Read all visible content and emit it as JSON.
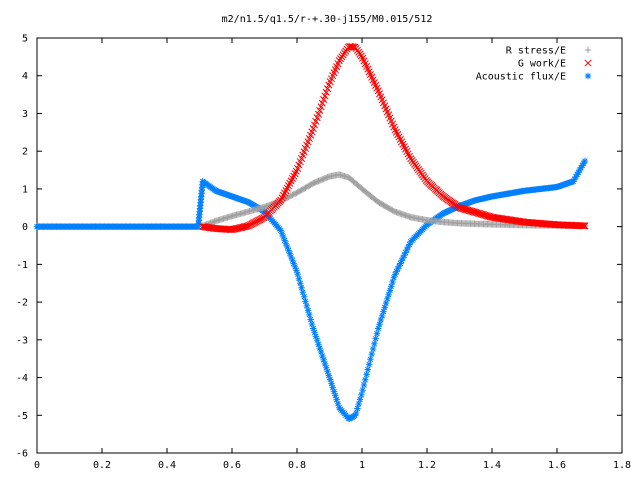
{
  "chart_data": {
    "type": "scatter",
    "title": "m2/n1.5/q1.5/r-+.30-j155/M0.015/512",
    "xlabel": "",
    "ylabel": "",
    "xlim": [
      0,
      1.8
    ],
    "ylim": [
      -6,
      5
    ],
    "xticks": [
      "0",
      "0.2",
      "0.4",
      "0.6",
      "0.8",
      "1",
      "1.2",
      "1.4",
      "1.6",
      "1.8"
    ],
    "yticks": [
      "5",
      "4",
      "3",
      "2",
      "1",
      "0",
      "-1",
      "-2",
      "-3",
      "-4",
      "-5",
      "-6"
    ],
    "legend_position": "top-right",
    "series": [
      {
        "name": "R stress/E",
        "marker": "+",
        "color": "#a0a0a0",
        "x": [
          0.51,
          0.55,
          0.6,
          0.65,
          0.7,
          0.75,
          0.8,
          0.85,
          0.9,
          0.93,
          0.96,
          1.0,
          1.05,
          1.1,
          1.15,
          1.2,
          1.25,
          1.3,
          1.4,
          1.5,
          1.6,
          1.69
        ],
        "y": [
          0.02,
          0.15,
          0.28,
          0.4,
          0.52,
          0.68,
          0.9,
          1.15,
          1.33,
          1.38,
          1.3,
          1.0,
          0.65,
          0.4,
          0.25,
          0.17,
          0.12,
          0.09,
          0.06,
          0.04,
          0.03,
          0.02
        ]
      },
      {
        "name": "G work/E",
        "marker": "x",
        "color": "#ff0000",
        "x": [
          0.51,
          0.55,
          0.6,
          0.65,
          0.7,
          0.75,
          0.8,
          0.85,
          0.9,
          0.93,
          0.96,
          0.98,
          1.0,
          1.05,
          1.1,
          1.15,
          1.2,
          1.25,
          1.3,
          1.4,
          1.5,
          1.6,
          1.69
        ],
        "y": [
          0.0,
          -0.05,
          -0.08,
          0.02,
          0.25,
          0.7,
          1.5,
          2.6,
          3.8,
          4.4,
          4.78,
          4.75,
          4.5,
          3.6,
          2.6,
          1.8,
          1.2,
          0.8,
          0.5,
          0.25,
          0.12,
          0.05,
          0.02
        ]
      },
      {
        "name": "Acoustic flux/E",
        "marker": "*",
        "color": "#0080ff",
        "x": [
          0.0,
          0.5,
          0.51,
          0.55,
          0.6,
          0.65,
          0.7,
          0.75,
          0.8,
          0.85,
          0.9,
          0.93,
          0.96,
          0.98,
          1.0,
          1.05,
          1.1,
          1.15,
          1.2,
          1.25,
          1.3,
          1.35,
          1.4,
          1.5,
          1.6,
          1.65,
          1.69
        ],
        "y": [
          0.0,
          0.0,
          1.2,
          0.95,
          0.8,
          0.65,
          0.4,
          -0.1,
          -1.2,
          -2.7,
          -4.0,
          -4.8,
          -5.1,
          -5.0,
          -4.4,
          -2.7,
          -1.3,
          -0.4,
          0.05,
          0.35,
          0.55,
          0.7,
          0.8,
          0.95,
          1.05,
          1.2,
          1.8
        ]
      }
    ]
  }
}
